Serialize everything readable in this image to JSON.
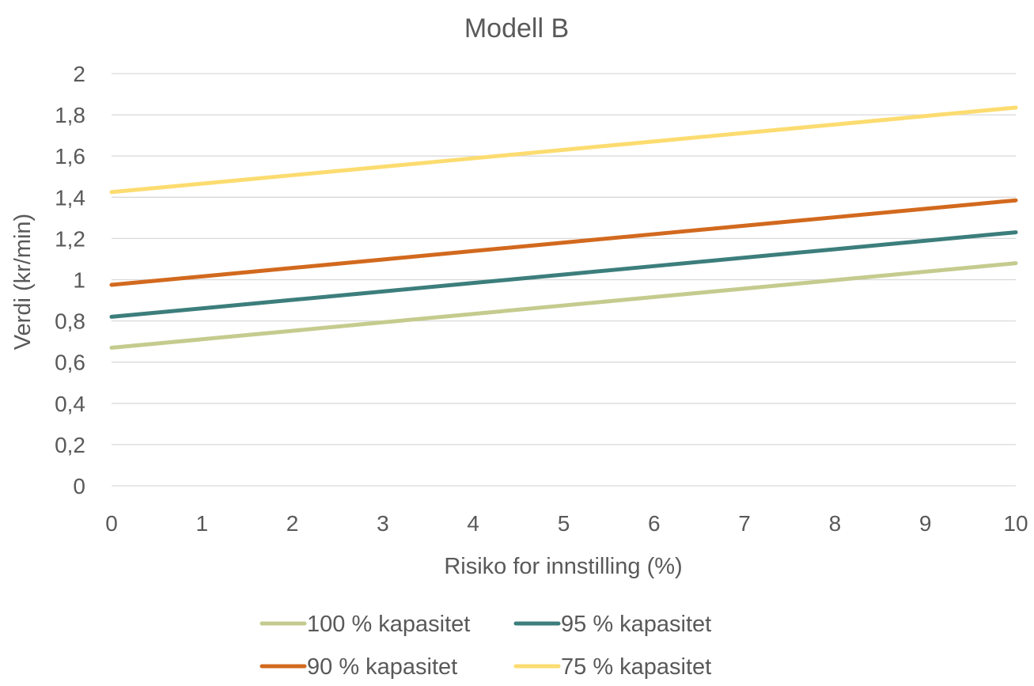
{
  "chart_data": {
    "type": "line",
    "title": "Modell B",
    "xlabel": "Risiko for innstilling (%)",
    "ylabel": "Verdi (kr/min)",
    "x": [
      0,
      1,
      2,
      3,
      4,
      5,
      6,
      7,
      8,
      9,
      10
    ],
    "xlim": [
      0,
      10
    ],
    "ylim": [
      0,
      2
    ],
    "x_ticks": [
      "0",
      "1",
      "2",
      "3",
      "4",
      "5",
      "6",
      "7",
      "8",
      "9",
      "10"
    ],
    "y_ticks": [
      "0",
      "0,2",
      "0,4",
      "0,6",
      "0,8",
      "1",
      "1,2",
      "1,4",
      "1,6",
      "1,8",
      "2"
    ],
    "y_tick_values": [
      0,
      0.2,
      0.4,
      0.6,
      0.8,
      1.0,
      1.2,
      1.4,
      1.6,
      1.8,
      2.0
    ],
    "grid": true,
    "legend_position": "bottom",
    "series": [
      {
        "name": "100 % kapasitet",
        "color": "#c5cb8e",
        "values": [
          0.67,
          0.711,
          0.752,
          0.793,
          0.834,
          0.875,
          0.916,
          0.957,
          0.998,
          1.039,
          1.08
        ]
      },
      {
        "name": "95 % kapasitet",
        "color": "#3c7e7c",
        "values": [
          0.82,
          0.861,
          0.902,
          0.943,
          0.984,
          1.025,
          1.066,
          1.107,
          1.148,
          1.189,
          1.23
        ]
      },
      {
        "name": "90 % kapasitet",
        "color": "#d2691e",
        "values": [
          0.975,
          1.016,
          1.057,
          1.098,
          1.139,
          1.18,
          1.221,
          1.262,
          1.303,
          1.344,
          1.385
        ]
      },
      {
        "name": "75 % kapasitet",
        "color": "#fcdc70",
        "values": [
          1.425,
          1.466,
          1.507,
          1.548,
          1.589,
          1.63,
          1.671,
          1.712,
          1.753,
          1.794,
          1.835
        ]
      }
    ]
  }
}
